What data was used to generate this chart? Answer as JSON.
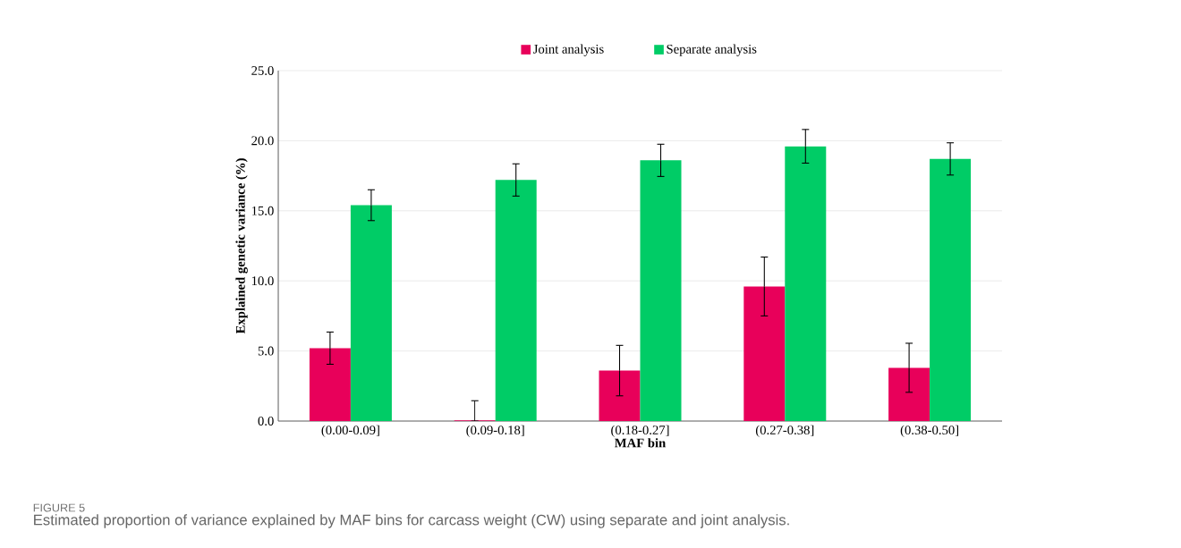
{
  "chart_data": {
    "type": "bar",
    "xlabel": "MAF bin",
    "ylabel": "Explained genetic variance (%)",
    "categories": [
      "(0.00-0.09]",
      "(0.09-0.18]",
      "(0.18-0.27]",
      "(0.27-0.38]",
      "(0.38-0.50]"
    ],
    "series": [
      {
        "name": "Joint analysis",
        "color": "#e8005a",
        "values": [
          5.2,
          0.05,
          3.6,
          9.6,
          3.8
        ],
        "errors": [
          1.15,
          [
            0,
            1.45
          ],
          1.8,
          2.1,
          1.75
        ]
      },
      {
        "name": "Separate analysis",
        "color": "#00cc66",
        "values": [
          15.4,
          17.2,
          18.6,
          19.6,
          18.7
        ],
        "errors": [
          1.1,
          1.15,
          1.15,
          1.2,
          1.15
        ]
      }
    ],
    "ylim": [
      0,
      25
    ],
    "yticks": [
      {
        "value": 0,
        "label": "0.0"
      },
      {
        "value": 5,
        "label": "5.0"
      },
      {
        "value": 10,
        "label": "10.0"
      },
      {
        "value": 15,
        "label": "15.0"
      },
      {
        "value": 20,
        "label": "20.0"
      },
      {
        "value": 25,
        "label": "25.0"
      }
    ],
    "grid": "y",
    "legend": "top",
    "annotations": [
      "FIGURE 5",
      "Estimated proportion of variance explained by MAF bins for carcass weight (CW) using separate and joint analysis."
    ]
  }
}
